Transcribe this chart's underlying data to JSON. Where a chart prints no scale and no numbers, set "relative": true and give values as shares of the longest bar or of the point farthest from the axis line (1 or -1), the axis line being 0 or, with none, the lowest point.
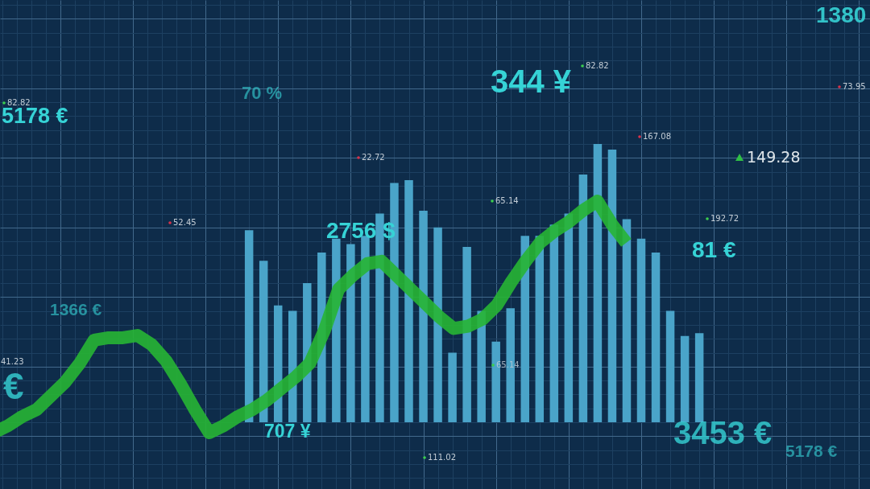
{
  "chart_data": [
    {
      "type": "bar",
      "relative": true,
      "grid": true,
      "color": "#4aa4c9",
      "categories": [
        null,
        null,
        null,
        null,
        null,
        null,
        null,
        null,
        null,
        null,
        null,
        null,
        null,
        null,
        null,
        null,
        null,
        null,
        null,
        null,
        null,
        null,
        null,
        null,
        null,
        null,
        null,
        null,
        null,
        null,
        null,
        null
      ],
      "values": [
        0.69,
        0.58,
        0.42,
        0.4,
        0.5,
        0.61,
        0.66,
        0.64,
        0.67,
        0.75,
        0.86,
        0.87,
        0.76,
        0.7,
        0.25,
        0.63,
        0.4,
        0.29,
        0.41,
        0.67,
        0.67,
        0.71,
        0.75,
        0.89,
        1.0,
        0.98,
        0.73,
        0.66,
        0.61,
        0.4,
        0.31,
        0.32
      ],
      "annotations": [
        "1380",
        "82.82",
        "344 ¥",
        "73.95",
        "70 %",
        "82.82",
        "5178 €",
        "167.08",
        "149.28",
        "22.72",
        "65.14",
        "192.72",
        "52.45",
        "2756 $",
        "81 €",
        "1366 €",
        "41.23",
        "65.14",
        "€",
        "707 ¥",
        "3453 €",
        "5178 €",
        "111.02"
      ]
    },
    {
      "type": "line",
      "relative": true,
      "color": "#27b534",
      "categories": [
        null,
        null,
        null,
        null,
        null,
        null,
        null,
        null,
        null,
        null,
        null,
        null,
        null,
        null,
        null,
        null,
        null,
        null,
        null,
        null,
        null,
        null,
        null,
        null,
        null,
        null,
        null,
        null,
        null,
        null,
        null,
        null,
        null,
        null,
        null,
        null,
        null,
        null,
        null,
        null,
        null,
        null,
        null,
        null,
        null
      ],
      "values": [
        0.0,
        0.03,
        0.07,
        0.1,
        0.16,
        0.22,
        0.3,
        0.4,
        0.41,
        0.41,
        0.42,
        0.38,
        0.31,
        0.21,
        0.1,
        0.0,
        0.03,
        0.07,
        0.1,
        0.14,
        0.19,
        0.24,
        0.3,
        0.44,
        0.62,
        0.68,
        0.73,
        0.74,
        0.68,
        0.62,
        0.56,
        0.5,
        0.45,
        0.46,
        0.49,
        0.55,
        0.65,
        0.74,
        0.82,
        0.87,
        0.91,
        0.96,
        1.0,
        0.9,
        0.82
      ]
    }
  ]
}
